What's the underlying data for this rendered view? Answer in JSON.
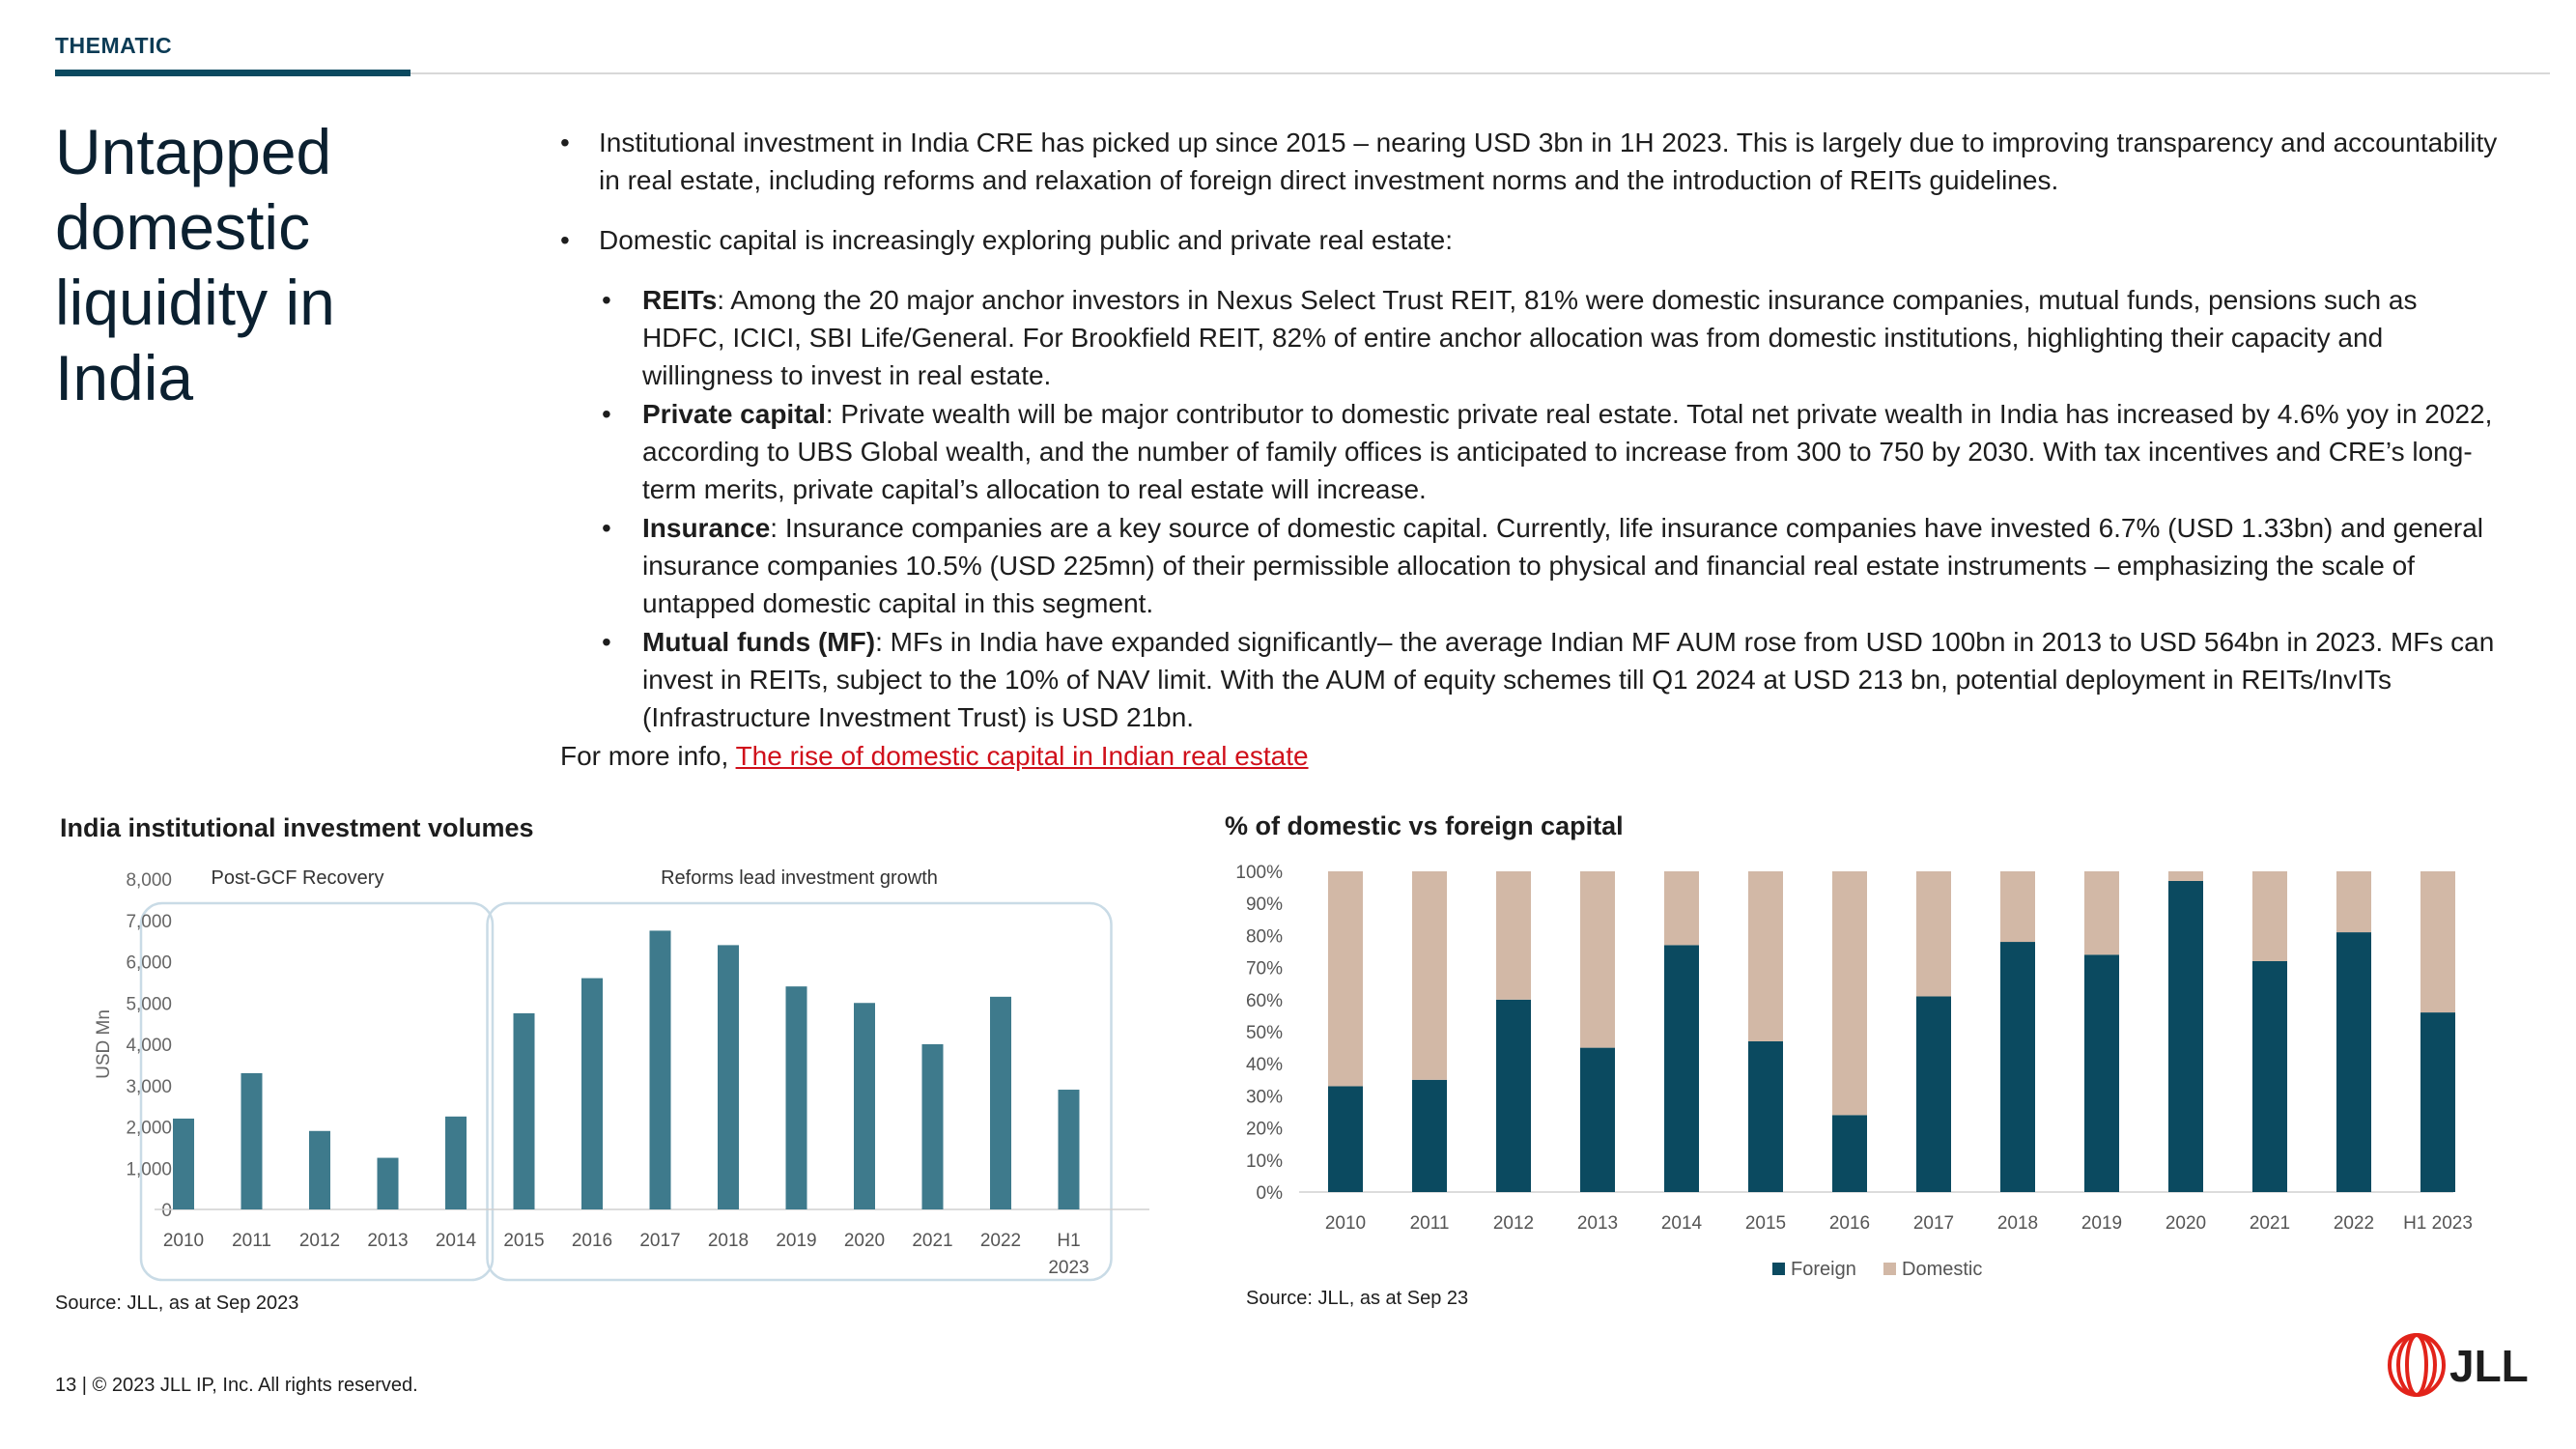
{
  "header": {
    "section_label": "THEMATIC"
  },
  "title_lines": [
    "Untapped",
    "domestic",
    "liquidity in",
    "India"
  ],
  "body": {
    "bullets": [
      "Institutional investment in India CRE has picked up since 2015 – nearing USD 3bn in 1H 2023. This is largely due to improving transparency and accountability in real estate, including reforms and relaxation of foreign direct investment norms and the introduction of REITs guidelines.",
      "Domestic capital is increasingly exploring public and private real estate:"
    ],
    "sub_bullets": [
      {
        "label": "REITs",
        "text": ": Among the 20 major anchor investors in Nexus Select Trust REIT, 81% were domestic insurance companies, mutual funds, pensions such as HDFC, ICICI, SBI Life/General. For Brookfield REIT, 82% of entire anchor allocation was from domestic institutions, highlighting their capacity and willingness to invest in real estate."
      },
      {
        "label": "Private capital",
        "text": ": Private wealth will be major contributor to domestic private real estate. Total net private wealth in India has increased by 4.6% yoy in 2022, according to UBS Global wealth, and the number of family offices is anticipated to increase from 300 to 750 by 2030. With tax incentives and CRE’s long-term merits, private capital’s allocation to real estate will increase."
      },
      {
        "label": "Insurance",
        "text": ": Insurance companies are a key source of domestic capital. Currently, life insurance companies have invested 6.7% (USD 1.33bn) and general insurance companies 10.5% (USD 225mn) of their permissible allocation to physical and financial real estate instruments – emphasizing the scale of untapped domestic capital in this segment."
      },
      {
        "label": "Mutual funds (MF)",
        "text": ": MFs in India have expanded significantly– the average Indian MF AUM rose from USD 100bn in 2013 to USD 564bn in 2023. MFs can invest in REITs, subject to the 10% of NAV limit. With the AUM of equity schemes till Q1 2024 at USD 213 bn, potential deployment in REITs/InvITs (Infrastructure Investment Trust) is USD 21bn."
      }
    ],
    "more_info_prefix": "For more info, ",
    "more_info_link": "The rise of domestic capital in Indian real estate"
  },
  "chart_data": [
    {
      "type": "bar",
      "title": "India institutional investment volumes",
      "ylabel": "USD Mn",
      "xlabel": "",
      "ylim": [
        0,
        8000
      ],
      "yticks": [
        0,
        1000,
        2000,
        3000,
        4000,
        5000,
        6000,
        7000,
        8000
      ],
      "ytick_labels": [
        "0",
        "1,000",
        "2,000",
        "3,000",
        "4,000",
        "5,000",
        "6,000",
        "7,000",
        "8,000"
      ],
      "categories": [
        "2010",
        "2011",
        "2012",
        "2013",
        "2014",
        "2015",
        "2016",
        "2017",
        "2018",
        "2019",
        "2020",
        "2021",
        "2022",
        "H1 2023"
      ],
      "values": [
        2200,
        3300,
        1900,
        1250,
        2250,
        4750,
        5600,
        6750,
        6400,
        5400,
        5000,
        4000,
        5150,
        2900
      ],
      "color": "#3e7a8c",
      "annotations": [
        {
          "label": "Post-GCF Recovery",
          "from": "2010",
          "to": "2014"
        },
        {
          "label": "Reforms lead investment growth",
          "from": "2015",
          "to": "H1 2023"
        }
      ],
      "grid": false,
      "source": "Source: JLL, as at Sep 2023"
    },
    {
      "type": "bar",
      "stacked": true,
      "title": "% of domestic vs foreign capital",
      "ylim": [
        0,
        100
      ],
      "yticks": [
        0,
        10,
        20,
        30,
        40,
        50,
        60,
        70,
        80,
        90,
        100
      ],
      "ytick_labels": [
        "0%",
        "10%",
        "20%",
        "30%",
        "40%",
        "50%",
        "60%",
        "70%",
        "80%",
        "90%",
        "100%"
      ],
      "categories": [
        "2010",
        "2011",
        "2012",
        "2013",
        "2014",
        "2015",
        "2016",
        "2017",
        "2018",
        "2019",
        "2020",
        "2021",
        "2022",
        "H1 2023"
      ],
      "series": [
        {
          "name": "Foreign",
          "color": "#0b4a60",
          "values": [
            33,
            35,
            60,
            45,
            77,
            47,
            24,
            61,
            78,
            74,
            97,
            72,
            81,
            56
          ]
        },
        {
          "name": "Domestic",
          "color": "#d2b8a6",
          "values": [
            67,
            65,
            40,
            55,
            23,
            53,
            76,
            39,
            22,
            26,
            3,
            28,
            19,
            44
          ]
        }
      ],
      "legend": "bottom",
      "grid": false,
      "source": "Source: JLL, as at Sep 23"
    }
  ],
  "footer": {
    "text": "13 | © 2023 JLL IP, Inc. All rights reserved."
  },
  "logo": {
    "text": "JLL",
    "color": "#e2231a"
  }
}
